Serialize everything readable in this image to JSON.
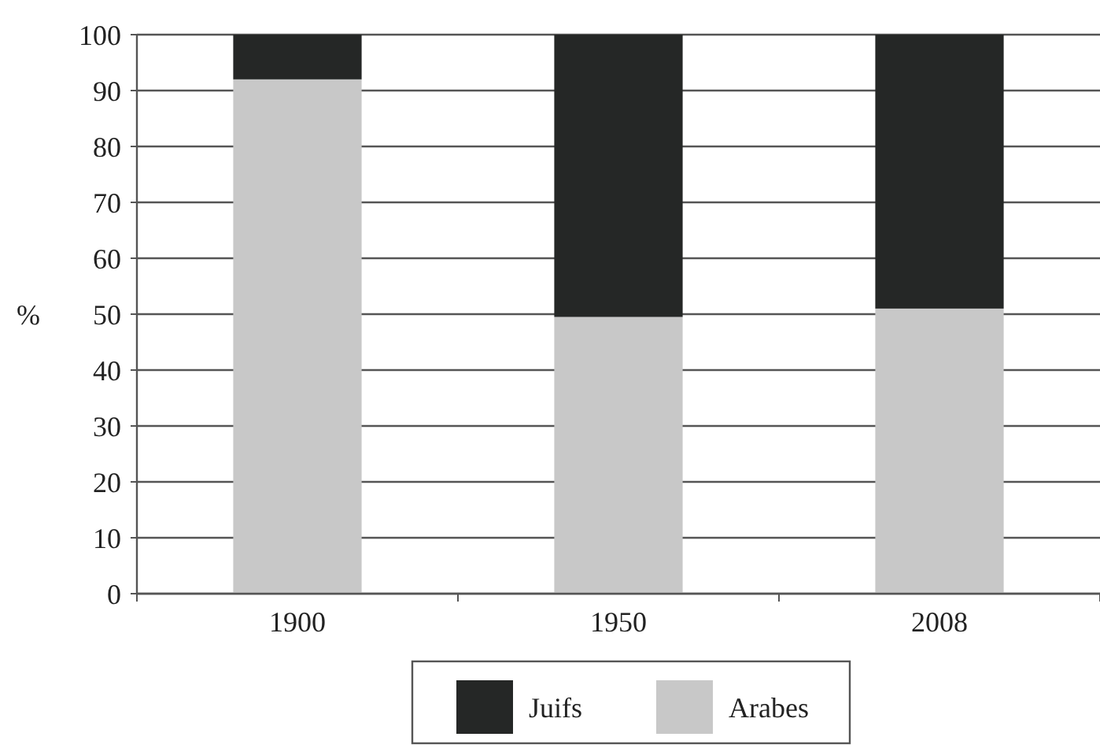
{
  "chart_data": {
    "type": "bar",
    "ylabel": "%",
    "categories": [
      "1900",
      "1950",
      "2008"
    ],
    "stacked": true,
    "series": [
      {
        "name": "Arabes",
        "color": "#c8c8c8",
        "values": [
          92,
          49.5,
          51
        ]
      },
      {
        "name": "Juifs",
        "color": "#252726",
        "values": [
          8,
          50.5,
          49
        ]
      }
    ],
    "ylim": [
      0,
      100
    ],
    "yticks": [
      0,
      10,
      20,
      30,
      40,
      50,
      60,
      70,
      80,
      90,
      100
    ],
    "grid": "y",
    "legend": "bottom"
  }
}
